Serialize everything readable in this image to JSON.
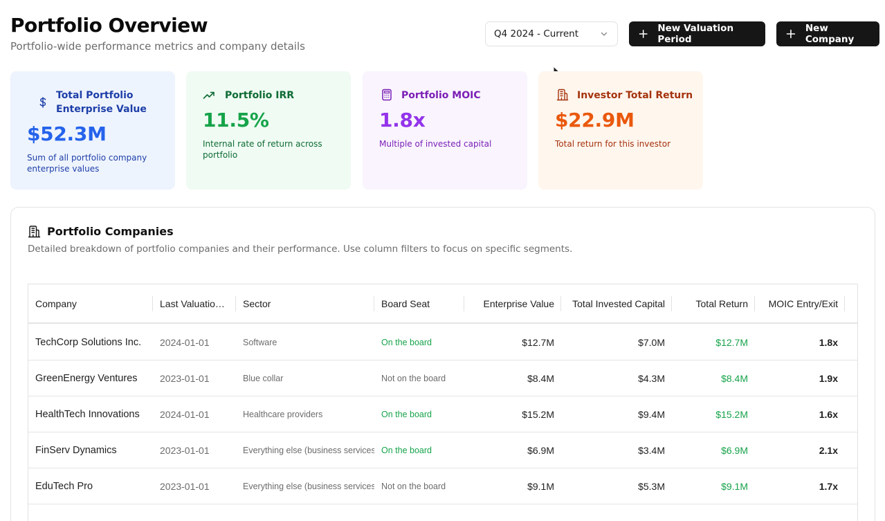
{
  "header": {
    "title": "Portfolio Overview",
    "subtitle": "Portfolio-wide performance metrics and company details",
    "period_select": "Q4 2024 - Current",
    "new_valuation_label": "New Valuation Period",
    "new_company_label": "New Company"
  },
  "cards": {
    "enterprise_value": {
      "label": "Total Portfolio Enterprise Value",
      "value": "$52.3M",
      "description": "Sum of all portfolio company enterprise values",
      "icon": "dollar-icon",
      "color": "#2563eb"
    },
    "irr": {
      "label": "Portfolio IRR",
      "value": "11.5%",
      "description": "Internal rate of return across portfolio",
      "icon": "trending-up-icon",
      "color": "#16a34a"
    },
    "moic": {
      "label": "Portfolio MOIC",
      "value": "1.8x",
      "description": "Multiple of invested capital",
      "icon": "calculator-icon",
      "color": "#9333ea"
    },
    "investor_return": {
      "label": "Investor Total Return",
      "value": "$22.9M",
      "description": "Total return for this investor",
      "icon": "building-icon",
      "color": "#ea580c"
    }
  },
  "companies_panel": {
    "title": "Portfolio Companies",
    "description": "Detailed breakdown of portfolio companies and their performance. Use column filters to focus on specific segments.",
    "columns": [
      "Company",
      "Last Valuation Date",
      "Sector",
      "Board Seat",
      "Enterprise Value",
      "Total Invested Capital",
      "Total Return",
      "MOIC Entry/Exit"
    ],
    "rows": [
      {
        "company": "TechCorp Solutions Inc.",
        "date": "2024-01-01",
        "sector": "Software",
        "board": "On the board",
        "on_board": true,
        "ev": "$12.7M",
        "invested": "$7.0M",
        "return": "$12.7M",
        "moic": "1.8x"
      },
      {
        "company": "GreenEnergy Ventures",
        "date": "2023-01-01",
        "sector": "Blue collar",
        "board": "Not on the board",
        "on_board": false,
        "ev": "$8.4M",
        "invested": "$4.3M",
        "return": "$8.4M",
        "moic": "1.9x"
      },
      {
        "company": "HealthTech Innovations",
        "date": "2024-01-01",
        "sector": "Healthcare providers",
        "board": "On the board",
        "on_board": true,
        "ev": "$15.2M",
        "invested": "$9.4M",
        "return": "$15.2M",
        "moic": "1.6x"
      },
      {
        "company": "FinServ Dynamics",
        "date": "2023-01-01",
        "sector": "Everything else (business services)",
        "board": "On the board",
        "on_board": true,
        "ev": "$6.9M",
        "invested": "$3.4M",
        "return": "$6.9M",
        "moic": "2.1x"
      },
      {
        "company": "EduTech Pro",
        "date": "2023-01-01",
        "sector": "Everything else (business services)",
        "board": "Not on the board",
        "on_board": false,
        "ev": "$9.1M",
        "invested": "$5.3M",
        "return": "$9.1M",
        "moic": "1.7x"
      }
    ]
  }
}
